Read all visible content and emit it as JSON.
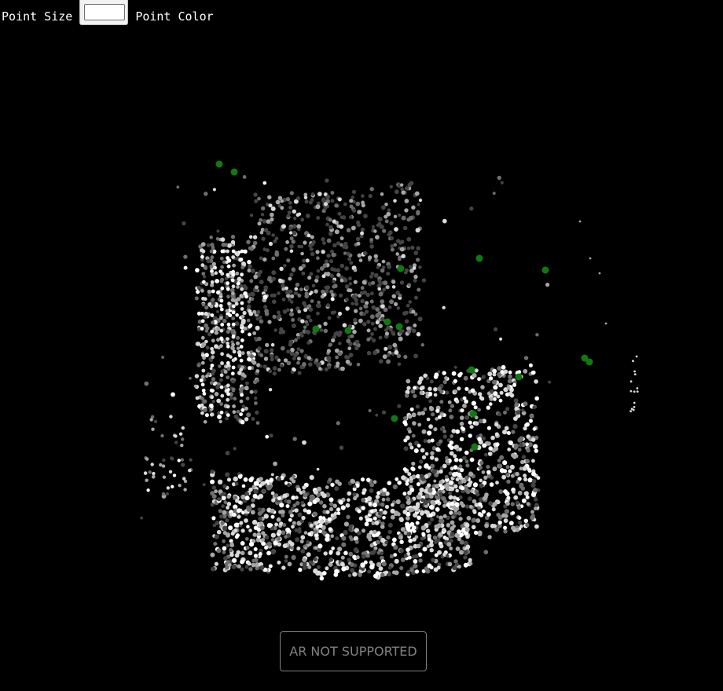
{
  "controls": {
    "point_size_label": "Point Size",
    "point_size_value": "",
    "point_color_label": "Point Color"
  },
  "ar_button": {
    "label": "AR NOT SUPPORTED"
  },
  "scene": {
    "background_color": "#000000",
    "cloud_colors": [
      "#ffffff",
      "#d9d9d9",
      "#a6a6a6",
      "#6e6e6e",
      "#444444"
    ],
    "marker_color": "#0f7a12"
  }
}
